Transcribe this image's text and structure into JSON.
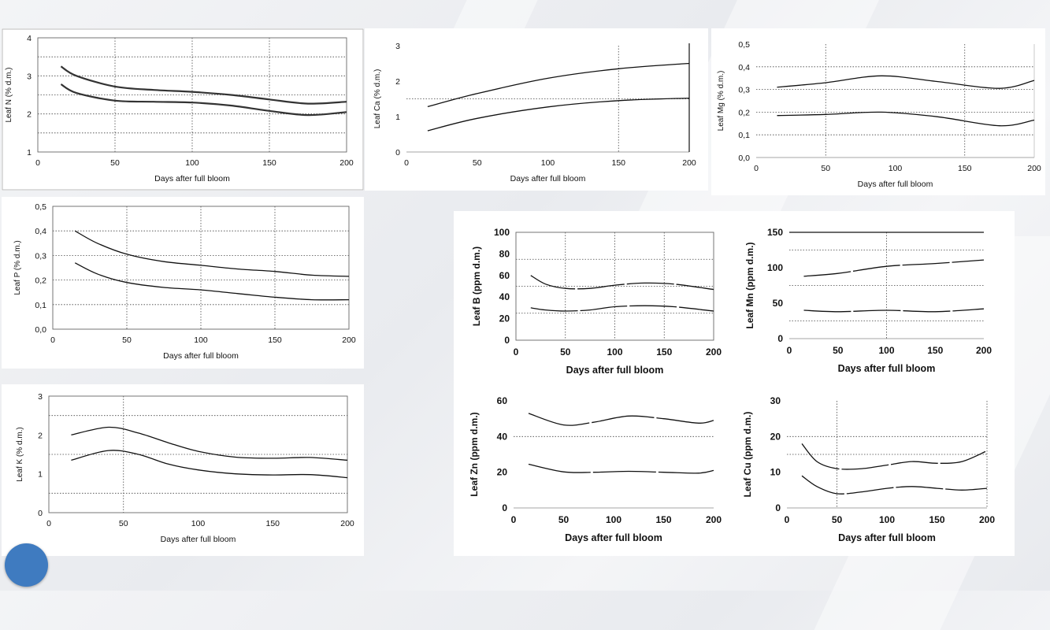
{
  "slide": {
    "accent_color": "#3f7bc0",
    "background": "#eeeff2"
  },
  "chart_data": [
    {
      "id": "n",
      "type": "line",
      "ylabel": "Leaf N (% d.m.)",
      "xlabel": "Days after full bloom",
      "xlim": [
        0,
        200
      ],
      "ylim": [
        1,
        4
      ],
      "xticks": [
        0,
        50,
        100,
        150,
        200
      ],
      "xtick_labels": [
        "0",
        "50",
        "100",
        "150",
        "200"
      ],
      "yticks": [
        1,
        2,
        3,
        4
      ],
      "ytick_labels": [
        "1",
        "2",
        "3",
        "4"
      ],
      "hgrid": [
        1.5,
        2,
        2.5,
        3,
        3.5
      ],
      "vgrid": [
        50,
        100,
        150
      ],
      "frame": true,
      "plot_border": true,
      "series": [
        {
          "x": [
            15,
            25,
            50,
            75,
            100,
            125,
            150,
            175,
            200
          ],
          "y": [
            3.25,
            3.0,
            2.72,
            2.63,
            2.58,
            2.5,
            2.38,
            2.27,
            2.32
          ]
        },
        {
          "x": [
            15,
            25,
            50,
            75,
            100,
            125,
            150,
            175,
            200
          ],
          "y": [
            2.78,
            2.55,
            2.35,
            2.32,
            2.3,
            2.22,
            2.08,
            1.97,
            2.05
          ]
        }
      ]
    },
    {
      "id": "ca",
      "type": "line",
      "ylabel": "Leaf Ca (% d.m.)",
      "xlabel": "Days after full bloom",
      "xlim": [
        0,
        200
      ],
      "ylim": [
        0,
        3
      ],
      "xticks": [
        0,
        50,
        100,
        150,
        200
      ],
      "xtick_labels": [
        "0",
        "50",
        "100",
        "150",
        "200"
      ],
      "yticks": [
        0,
        1,
        2,
        3
      ],
      "ytick_labels": [
        "0",
        "1",
        "2",
        "3"
      ],
      "hgrid": [
        1.5
      ],
      "vgrid": [
        150,
        200
      ],
      "frame": false,
      "plot_border": false,
      "series": [
        {
          "x": [
            15,
            50,
            100,
            150,
            200
          ],
          "y": [
            1.28,
            1.65,
            2.08,
            2.35,
            2.5
          ]
        },
        {
          "x": [
            15,
            50,
            100,
            150,
            200
          ],
          "y": [
            0.6,
            0.95,
            1.27,
            1.45,
            1.52
          ]
        }
      ]
    },
    {
      "id": "mg",
      "type": "line",
      "ylabel": "Leaf Mg (% d.m.)",
      "xlabel": "Days after full bloom",
      "xlim": [
        0,
        200
      ],
      "ylim": [
        0,
        0.5
      ],
      "xticks": [
        0,
        50,
        100,
        150,
        200
      ],
      "xtick_labels": [
        "0",
        "50",
        "100",
        "150",
        "200"
      ],
      "yticks": [
        0,
        0.1,
        0.2,
        0.3,
        0.4,
        0.5
      ],
      "ytick_labels": [
        "0,0",
        "0,1",
        "0,2",
        "0,3",
        "0,4",
        "0,5"
      ],
      "hgrid": [
        0.1,
        0.2,
        0.3,
        0.4
      ],
      "vgrid": [
        50,
        150
      ],
      "frame": false,
      "plot_border": false,
      "series": [
        {
          "x": [
            15,
            50,
            90,
            130,
            175,
            200
          ],
          "y": [
            0.31,
            0.33,
            0.36,
            0.335,
            0.305,
            0.34
          ]
        },
        {
          "x": [
            15,
            50,
            90,
            130,
            175,
            200
          ],
          "y": [
            0.185,
            0.19,
            0.2,
            0.18,
            0.14,
            0.165
          ]
        }
      ]
    },
    {
      "id": "p",
      "type": "line",
      "ylabel": "Leaf P (% d.m.)",
      "xlabel": "Days after full bloom",
      "xlim": [
        0,
        200
      ],
      "ylim": [
        0,
        0.5
      ],
      "xticks": [
        0,
        50,
        100,
        150,
        200
      ],
      "xtick_labels": [
        "0",
        "50",
        "100",
        "150",
        "200"
      ],
      "yticks": [
        0,
        0.1,
        0.2,
        0.3,
        0.4,
        0.5
      ],
      "ytick_labels": [
        "0,0",
        "0,1",
        "0,2",
        "0,3",
        "0,4",
        "0,5"
      ],
      "hgrid": [
        0.1,
        0.2,
        0.3,
        0.4
      ],
      "vgrid": [
        50,
        100,
        150
      ],
      "frame": false,
      "plot_border": true,
      "series": [
        {
          "x": [
            15,
            30,
            50,
            75,
            100,
            125,
            150,
            175,
            200
          ],
          "y": [
            0.4,
            0.35,
            0.305,
            0.275,
            0.26,
            0.245,
            0.235,
            0.22,
            0.215
          ]
        },
        {
          "x": [
            15,
            30,
            50,
            75,
            100,
            125,
            150,
            175,
            200
          ],
          "y": [
            0.27,
            0.225,
            0.19,
            0.17,
            0.16,
            0.145,
            0.13,
            0.12,
            0.12
          ]
        }
      ]
    },
    {
      "id": "k",
      "type": "line",
      "ylabel": "Leaf K (% d.m.)",
      "xlabel": "Days after full bloom",
      "xlim": [
        0,
        200
      ],
      "ylim": [
        0,
        3
      ],
      "xticks": [
        0,
        50,
        100,
        150,
        200
      ],
      "xtick_labels": [
        "0",
        "50",
        "100",
        "150",
        "200"
      ],
      "yticks": [
        0,
        1,
        2,
        3
      ],
      "ytick_labels": [
        "0",
        "1",
        "2",
        "3"
      ],
      "hgrid": [
        0.5,
        1.5,
        2.5
      ],
      "vgrid": [
        50
      ],
      "frame": false,
      "plot_border": true,
      "series": [
        {
          "x": [
            15,
            40,
            60,
            80,
            100,
            125,
            150,
            175,
            200
          ],
          "y": [
            2.0,
            2.2,
            2.05,
            1.8,
            1.58,
            1.43,
            1.4,
            1.42,
            1.35
          ]
        },
        {
          "x": [
            15,
            40,
            60,
            80,
            100,
            125,
            150,
            175,
            200
          ],
          "y": [
            1.35,
            1.6,
            1.5,
            1.25,
            1.1,
            1.0,
            0.97,
            0.98,
            0.9
          ]
        }
      ]
    },
    {
      "id": "b",
      "type": "line",
      "ylabel": "Leaf B (ppm d.m.)",
      "xlabel": "Days after full bloom",
      "xlim": [
        0,
        200
      ],
      "ylim": [
        0,
        100
      ],
      "xticks": [
        0,
        50,
        100,
        150,
        200
      ],
      "xtick_labels": [
        "0",
        "50",
        "100",
        "150",
        "200"
      ],
      "yticks": [
        0,
        20,
        40,
        60,
        80,
        100
      ],
      "ytick_labels": [
        "0",
        "20",
        "40",
        "60",
        "80",
        "100"
      ],
      "hgrid": [
        25,
        50,
        75
      ],
      "vgrid": [
        50,
        100,
        150
      ],
      "frame": false,
      "plot_border": true,
      "series": [
        {
          "x": [
            15,
            30,
            50,
            75,
            100,
            130,
            160,
            200
          ],
          "y": [
            60,
            52,
            48,
            48,
            51,
            53,
            52,
            47
          ]
        },
        {
          "x": [
            15,
            30,
            50,
            75,
            100,
            130,
            160,
            200
          ],
          "y": [
            30,
            28,
            27,
            28,
            31,
            32,
            31,
            27
          ]
        }
      ]
    },
    {
      "id": "mn",
      "type": "line",
      "ylabel": "Leaf Mn (ppm d.m.)",
      "xlabel": "Days after full bloom",
      "xlim": [
        0,
        200
      ],
      "ylim": [
        0,
        150
      ],
      "xticks": [
        0,
        50,
        100,
        150,
        200
      ],
      "xtick_labels": [
        "0",
        "50",
        "100",
        "150",
        "200"
      ],
      "yticks": [
        0,
        50,
        100,
        150
      ],
      "ytick_labels": [
        "0",
        "50",
        "100",
        "150"
      ],
      "hgrid": [
        25,
        75,
        125
      ],
      "vgrid": [
        100
      ],
      "frame": false,
      "plot_border": false,
      "top_line": 150,
      "series": [
        {
          "x": [
            15,
            50,
            100,
            150,
            200
          ],
          "y": [
            88,
            92,
            102,
            106,
            111
          ]
        },
        {
          "x": [
            15,
            50,
            100,
            150,
            200
          ],
          "y": [
            40,
            38,
            40,
            38,
            42
          ]
        }
      ]
    },
    {
      "id": "zn",
      "type": "line",
      "ylabel": "Leaf Zn (ppm d.m.)",
      "xlabel": "Days after full bloom",
      "xlim": [
        0,
        200
      ],
      "ylim": [
        0,
        60
      ],
      "xticks": [
        0,
        50,
        100,
        150,
        200
      ],
      "xtick_labels": [
        "0",
        "50",
        "100",
        "150",
        "200"
      ],
      "yticks": [
        0,
        20,
        40,
        60
      ],
      "ytick_labels": [
        "0",
        "20",
        "40",
        "60"
      ],
      "hgrid": [
        40
      ],
      "vgrid": [],
      "frame": false,
      "plot_border": false,
      "series": [
        {
          "x": [
            15,
            50,
            80,
            115,
            150,
            185,
            200
          ],
          "y": [
            53,
            46.5,
            48,
            51.5,
            50,
            47.5,
            49
          ]
        },
        {
          "x": [
            15,
            50,
            80,
            115,
            150,
            185,
            200
          ],
          "y": [
            24.5,
            20.2,
            20,
            20.5,
            20,
            19.5,
            21
          ]
        }
      ]
    },
    {
      "id": "cu",
      "type": "line",
      "ylabel": "Leaf Cu (ppm d.m.)",
      "xlabel": "Days after full bloom",
      "xlim": [
        0,
        200
      ],
      "ylim": [
        0,
        30
      ],
      "xticks": [
        0,
        50,
        100,
        150,
        200
      ],
      "xtick_labels": [
        "0",
        "50",
        "100",
        "150",
        "200"
      ],
      "yticks": [
        0,
        10,
        20,
        30
      ],
      "ytick_labels": [
        "0",
        "10",
        "20",
        "30"
      ],
      "hgrid": [
        15,
        20
      ],
      "vgrid": [
        50,
        200
      ],
      "frame": false,
      "plot_border": false,
      "series": [
        {
          "x": [
            15,
            30,
            50,
            75,
            100,
            125,
            150,
            175,
            200
          ],
          "y": [
            18,
            13,
            11,
            11,
            12,
            13,
            12.5,
            13,
            16
          ]
        },
        {
          "x": [
            15,
            30,
            50,
            75,
            100,
            125,
            150,
            175,
            200
          ],
          "y": [
            9,
            6,
            4,
            4.5,
            5.5,
            6,
            5.5,
            5,
            5.5
          ]
        }
      ]
    }
  ]
}
